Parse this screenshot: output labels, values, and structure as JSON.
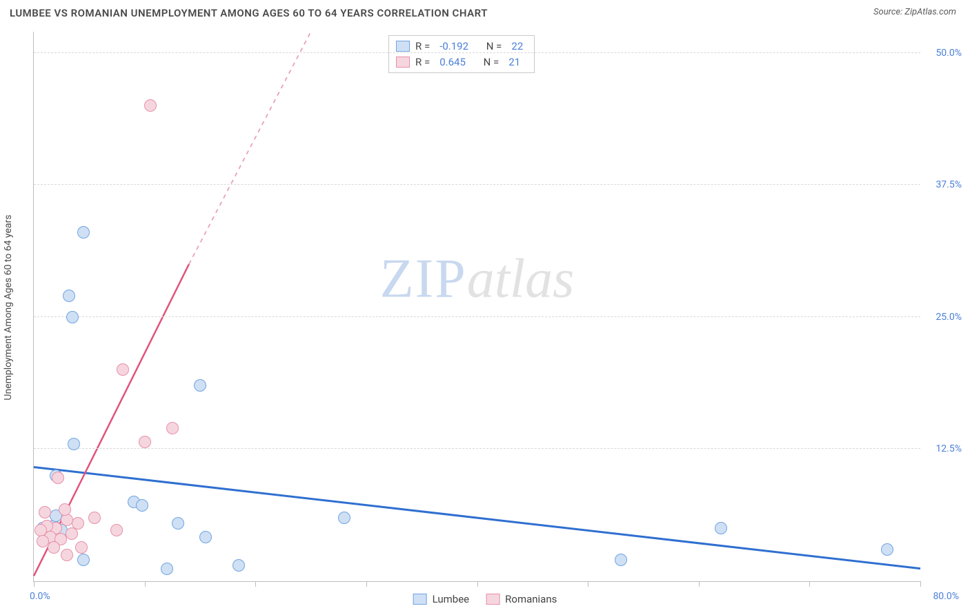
{
  "title": "LUMBEE VS ROMANIAN UNEMPLOYMENT AMONG AGES 60 TO 64 YEARS CORRELATION CHART",
  "source_label": "Source: ZipAtlas.com",
  "y_axis_title": "Unemployment Among Ages 60 to 64 years",
  "watermark": {
    "part1": "ZIP",
    "part2": "atlas"
  },
  "chart": {
    "type": "scatter",
    "background_color": "#ffffff",
    "grid_color": "#d8d8d8",
    "axis_color": "#bdbdbd",
    "tick_label_color": "#4a7fd8",
    "xlim": [
      0,
      80
    ],
    "ylim": [
      0,
      52
    ],
    "x_tick_positions": [
      0,
      10,
      20,
      30,
      40,
      50,
      60,
      70,
      80
    ],
    "x_min_label": "0.0%",
    "x_max_label": "80.0%",
    "y_gridlines": [
      12.5,
      25.0,
      37.5,
      50.0
    ],
    "y_tick_labels": [
      "12.5%",
      "25.0%",
      "37.5%",
      "50.0%"
    ],
    "marker_radius": 9,
    "marker_stroke_width": 1.5,
    "series": [
      {
        "name": "Lumbee",
        "fill": "#cfe0f5",
        "stroke": "#6fa3e0",
        "r_value": "-0.192",
        "n_value": "22",
        "trend": {
          "x1": 0,
          "y1": 10.8,
          "x2": 80,
          "y2": 1.2,
          "color": "#2f6fd0",
          "width": 3,
          "dash": "none"
        },
        "points": [
          {
            "x": 4.5,
            "y": 33.0
          },
          {
            "x": 3.2,
            "y": 27.0
          },
          {
            "x": 3.5,
            "y": 25.0
          },
          {
            "x": 15.0,
            "y": 18.5
          },
          {
            "x": 3.6,
            "y": 13.0
          },
          {
            "x": 2.0,
            "y": 10.0
          },
          {
            "x": 9.0,
            "y": 7.5
          },
          {
            "x": 9.8,
            "y": 7.2
          },
          {
            "x": 13.0,
            "y": 5.5
          },
          {
            "x": 15.5,
            "y": 4.2
          },
          {
            "x": 28.0,
            "y": 6.0
          },
          {
            "x": 12.0,
            "y": 1.2
          },
          {
            "x": 18.5,
            "y": 1.5
          },
          {
            "x": 4.5,
            "y": 2.0
          },
          {
            "x": 2.5,
            "y": 4.8
          },
          {
            "x": 1.0,
            "y": 4.5
          },
          {
            "x": 1.8,
            "y": 5.2
          },
          {
            "x": 0.8,
            "y": 5.0
          },
          {
            "x": 2.0,
            "y": 6.2
          },
          {
            "x": 53.0,
            "y": 2.0
          },
          {
            "x": 62.0,
            "y": 5.0
          },
          {
            "x": 77.0,
            "y": 3.0
          }
        ]
      },
      {
        "name": "Romanians",
        "fill": "#f6d6de",
        "stroke": "#e78fa8",
        "r_value": "0.645",
        "n_value": "21",
        "trend_solid": {
          "x1": 0,
          "y1": 0.5,
          "x2": 14.0,
          "y2": 30.0,
          "color": "#e0537b",
          "width": 2.5
        },
        "trend_dash": {
          "x1": 14.0,
          "y1": 30.0,
          "x2": 25.0,
          "y2": 52.0,
          "color": "#e9a3b6",
          "width": 1.8
        },
        "points": [
          {
            "x": 10.5,
            "y": 45.0
          },
          {
            "x": 8.0,
            "y": 20.0
          },
          {
            "x": 12.5,
            "y": 14.5
          },
          {
            "x": 10.0,
            "y": 13.2
          },
          {
            "x": 2.2,
            "y": 9.8
          },
          {
            "x": 7.5,
            "y": 4.8
          },
          {
            "x": 5.5,
            "y": 6.0
          },
          {
            "x": 4.0,
            "y": 5.5
          },
          {
            "x": 3.0,
            "y": 5.8
          },
          {
            "x": 2.0,
            "y": 5.0
          },
          {
            "x": 1.2,
            "y": 5.2
          },
          {
            "x": 0.6,
            "y": 4.8
          },
          {
            "x": 1.5,
            "y": 4.2
          },
          {
            "x": 2.4,
            "y": 4.0
          },
          {
            "x": 3.4,
            "y": 4.5
          },
          {
            "x": 4.3,
            "y": 3.2
          },
          {
            "x": 1.0,
            "y": 6.5
          },
          {
            "x": 2.8,
            "y": 6.8
          },
          {
            "x": 0.8,
            "y": 3.8
          },
          {
            "x": 1.8,
            "y": 3.2
          },
          {
            "x": 3.0,
            "y": 2.5
          }
        ]
      }
    ]
  },
  "legend_top": {
    "label_r": "R =",
    "label_n": "N ="
  },
  "legend_bottom": [
    {
      "label": "Lumbee",
      "fill": "#cfe0f5",
      "stroke": "#6fa3e0"
    },
    {
      "label": "Romanians",
      "fill": "#f6d6de",
      "stroke": "#e78fa8"
    }
  ]
}
